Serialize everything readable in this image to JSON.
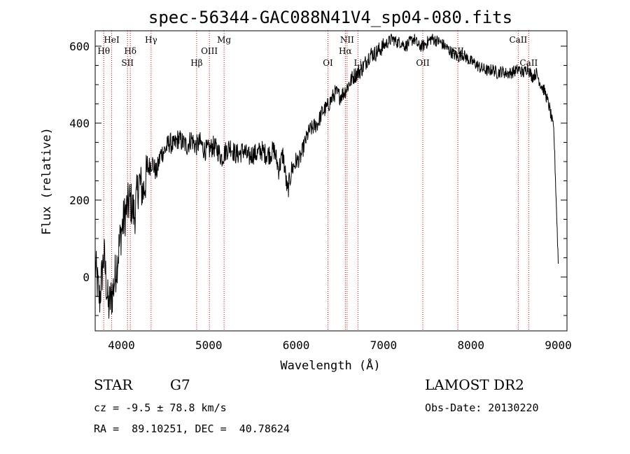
{
  "chart_data": {
    "type": "line",
    "title": "spec-56344-GAC088N41V4_sp04-080.fits",
    "xlabel": "Wavelength (Å)",
    "ylabel": "Flux (relative)",
    "xlim": [
      3700,
      9100
    ],
    "ylim": [
      -140,
      640
    ],
    "xticks": [
      4000,
      5000,
      6000,
      7000,
      8000,
      9000
    ],
    "xtick_labels": [
      "4000",
      "5000",
      "6000",
      "7000",
      "8000",
      "9000"
    ],
    "yticks": [
      0,
      200,
      400,
      600
    ],
    "ytick_labels": [
      "0",
      "200",
      "400",
      "600"
    ],
    "grid": false,
    "series": [
      {
        "x": [
          3700,
          3750,
          3800,
          3850,
          3900,
          3950,
          4000,
          4050,
          4100,
          4150,
          4200,
          4250,
          4300,
          4350,
          4400,
          4450,
          4500,
          4550,
          4600,
          4650,
          4700,
          4750,
          4800,
          4850,
          4900,
          4950,
          5000,
          5050,
          5100,
          5150,
          5200,
          5250,
          5300,
          5350,
          5400,
          5450,
          5500,
          5550,
          5600,
          5650,
          5700,
          5750,
          5800,
          5850,
          5900,
          5950,
          6000,
          6050,
          6100,
          6150,
          6200,
          6250,
          6300,
          6350,
          6400,
          6450,
          6500,
          6550,
          6600,
          6650,
          6700,
          6750,
          6800,
          6850,
          6900,
          6950,
          7000,
          7050,
          7100,
          7150,
          7200,
          7250,
          7300,
          7350,
          7400,
          7450,
          7500,
          7550,
          7600,
          7650,
          7700,
          7750,
          7800,
          7850,
          7900,
          7950,
          8000,
          8050,
          8100,
          8150,
          8200,
          8250,
          8300,
          8350,
          8400,
          8450,
          8500,
          8550,
          8600,
          8650,
          8700,
          8750,
          8800,
          8850,
          8900,
          8950,
          9000
        ],
        "y": [
          30,
          -60,
          60,
          -80,
          -40,
          40,
          120,
          170,
          200,
          160,
          250,
          220,
          280,
          300,
          270,
          320,
          330,
          350,
          340,
          360,
          350,
          340,
          360,
          340,
          350,
          330,
          330,
          340,
          330,
          310,
          330,
          340,
          320,
          320,
          330,
          310,
          320,
          320,
          330,
          320,
          320,
          330,
          280,
          320,
          220,
          280,
          300,
          310,
          350,
          380,
          390,
          400,
          430,
          440,
          460,
          480,
          470,
          480,
          500,
          520,
          530,
          540,
          560,
          580,
          580,
          590,
          600,
          610,
          620,
          610,
          610,
          600,
          610,
          620,
          600,
          600,
          610,
          620,
          615,
          610,
          600,
          590,
          580,
          570,
          580,
          570,
          560,
          555,
          545,
          540,
          535,
          540,
          530,
          535,
          530,
          530,
          535,
          540,
          530,
          545,
          520,
          530,
          500,
          480,
          440,
          380,
          40
        ]
      }
    ],
    "spectral_lines": [
      {
        "name": "Hθ",
        "x": 3798,
        "label_row": 1
      },
      {
        "name": "HeI",
        "x": 3889,
        "label_row": 0
      },
      {
        "name": "SII",
        "x": 4070,
        "label_row": 2
      },
      {
        "name": "Hδ",
        "x": 4102,
        "label_row": 1
      },
      {
        "name": "Hγ",
        "x": 4340,
        "label_row": 0
      },
      {
        "name": "Hβ",
        "x": 4861,
        "label_row": 2
      },
      {
        "name": "OIII",
        "x": 5007,
        "label_row": 1
      },
      {
        "name": "Mg",
        "x": 5175,
        "label_row": 0
      },
      {
        "name": "OI",
        "x": 6364,
        "label_row": 2
      },
      {
        "name": "NII",
        "x": 6583,
        "label_row": 0
      },
      {
        "name": "Hα",
        "x": 6563,
        "label_row": 1
      },
      {
        "name": "Li",
        "x": 6708,
        "label_row": 2
      },
      {
        "name": "OII",
        "x": 7450,
        "label_row": 2
      },
      {
        "name": "SII",
        "x": 7850,
        "label_row": 1
      },
      {
        "name": "CaII",
        "x": 8542,
        "label_row": 0
      },
      {
        "name": "CaII",
        "x": 8662,
        "label_row": 2
      }
    ],
    "colors": {
      "line": "#000000",
      "marker": "#cc0000"
    }
  },
  "info": {
    "class": "STAR",
    "subclass": "G7",
    "survey": "LAMOST DR2",
    "cz": "cz = -9.5 ± 78.8 km/s",
    "obs_date": "Obs-Date: 20130220",
    "coords": "RA =  89.10251, DEC =  40.78624"
  }
}
